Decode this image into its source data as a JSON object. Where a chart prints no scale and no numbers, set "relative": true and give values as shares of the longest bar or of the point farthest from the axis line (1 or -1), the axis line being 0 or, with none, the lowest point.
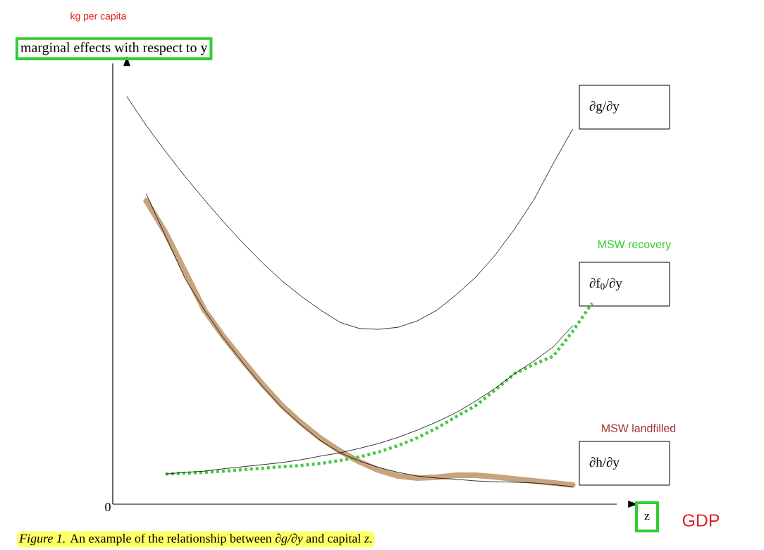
{
  "chart_data": {
    "type": "line",
    "relative": true,
    "ylabel": "marginal effects with respect to y",
    "xlabel": "z",
    "categories": [
      null,
      null,
      null,
      null,
      null,
      null,
      null,
      null,
      null,
      null,
      null,
      null,
      null,
      null,
      null,
      null,
      null,
      null,
      null,
      null,
      null,
      null,
      null,
      null,
      null
    ],
    "series": [
      {
        "name": "∂g/∂y",
        "color": "#000000",
        "values": [
          1.0,
          0.929,
          0.865,
          0.804,
          0.747,
          0.692,
          0.64,
          0.592,
          0.548,
          0.51,
          0.476,
          0.446,
          0.431,
          0.429,
          0.434,
          0.45,
          0.476,
          0.514,
          0.557,
          0.611,
          0.675,
          0.747,
          0.836,
          0.92,
          null
        ]
      },
      {
        "name": "∂f$_{0}$/∂y",
        "color": "#000000",
        "values": [
          null,
          null,
          0.074,
          0.078,
          0.081,
          0.087,
          0.092,
          0.097,
          0.102,
          0.109,
          0.118,
          0.126,
          0.137,
          0.149,
          0.164,
          0.182,
          0.202,
          0.225,
          0.253,
          0.284,
          0.32,
          0.351,
          0.386,
          0.438,
          null
        ]
      },
      {
        "name": "∂h/∂y",
        "color": "#000000",
        "values": [
          null,
          0.761,
          0.657,
          0.554,
          0.476,
          0.407,
          0.346,
          0.289,
          0.237,
          0.194,
          0.156,
          0.126,
          0.106,
          0.09,
          0.078,
          0.069,
          0.064,
          0.061,
          0.057,
          0.055,
          0.054,
          0.052,
          0.048,
          0.043,
          null
        ]
      },
      {
        "name": "MSW recovery",
        "color": "#44cc44",
        "line_style": "dotted",
        "values": [
          null,
          null,
          0.074,
          0.076,
          0.078,
          0.081,
          0.085,
          0.088,
          0.092,
          0.095,
          0.1,
          0.107,
          0.116,
          0.128,
          0.144,
          0.163,
          0.187,
          0.215,
          0.242,
          0.28,
          0.32,
          0.343,
          0.363,
          0.424,
          0.493
        ]
      },
      {
        "name": "MSW landfilled",
        "color": "#c8a47e",
        "values": [
          null,
          0.744,
          0.666,
          0.571,
          0.476,
          0.41,
          0.351,
          0.294,
          0.242,
          0.199,
          0.161,
          0.13,
          0.104,
          0.083,
          0.069,
          0.064,
          0.066,
          0.071,
          0.071,
          0.067,
          0.062,
          0.057,
          0.052,
          0.047,
          null
        ]
      }
    ],
    "annotations": [
      "kg per capita",
      "GDP",
      "0",
      "*Figure 1.*  An example of the relationship between *∂g/∂y* and capital *z*."
    ]
  }
}
